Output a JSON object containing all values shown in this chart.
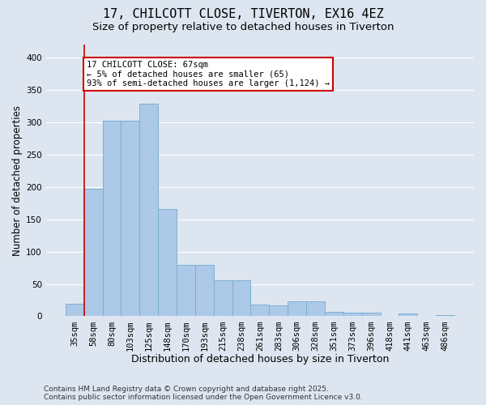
{
  "title1": "17, CHILCOTT CLOSE, TIVERTON, EX16 4EZ",
  "title2": "Size of property relative to detached houses in Tiverton",
  "xlabel": "Distribution of detached houses by size in Tiverton",
  "ylabel": "Number of detached properties",
  "categories": [
    "35sqm",
    "58sqm",
    "80sqm",
    "103sqm",
    "125sqm",
    "148sqm",
    "170sqm",
    "193sqm",
    "215sqm",
    "238sqm",
    "261sqm",
    "283sqm",
    "306sqm",
    "328sqm",
    "351sqm",
    "373sqm",
    "396sqm",
    "418sqm",
    "441sqm",
    "463sqm",
    "486sqm"
  ],
  "values": [
    19,
    197,
    302,
    302,
    328,
    166,
    80,
    80,
    56,
    56,
    18,
    17,
    23,
    23,
    7,
    6,
    5,
    0,
    4,
    0,
    2
  ],
  "bar_color": "#adc9e8",
  "bar_edge_color": "#7aafd4",
  "bar_linewidth": 0.7,
  "vline_color": "#cc0000",
  "vline_x_index": 1,
  "annotation_text": "17 CHILCOTT CLOSE: 67sqm\n← 5% of detached houses are smaller (65)\n93% of semi-detached houses are larger (1,124) →",
  "annotation_box_facecolor": "#ffffff",
  "annotation_box_edgecolor": "#cc0000",
  "ylim": [
    0,
    420
  ],
  "yticks": [
    0,
    50,
    100,
    150,
    200,
    250,
    300,
    350,
    400
  ],
  "background_color": "#dde6f0",
  "plot_bg_color": "#dde6f0",
  "grid_color": "#ffffff",
  "footer_text": "Contains HM Land Registry data © Crown copyright and database right 2025.\nContains public sector information licensed under the Open Government Licence v3.0.",
  "title1_fontsize": 11,
  "title2_fontsize": 9.5,
  "xlabel_fontsize": 9,
  "ylabel_fontsize": 8.5,
  "tick_fontsize": 7.5,
  "footer_fontsize": 6.5,
  "annotation_fontsize": 7.5
}
